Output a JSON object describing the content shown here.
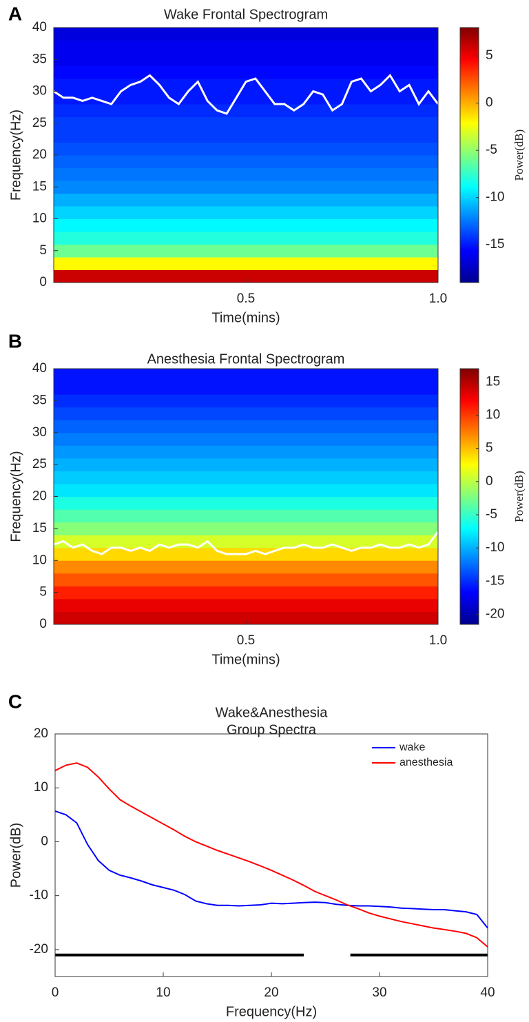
{
  "chart_data": [
    {
      "type": "spectrogram",
      "panel": "A",
      "title": "Wake Frontal Spectrogram",
      "xlabel": "Time(mins)",
      "ylabel": "Frequency(Hz)",
      "colorbar_label": "Power(dB)",
      "xlim": [
        0,
        1
      ],
      "xticks": [
        0.5,
        {
          "value": 1,
          "label": "1.0"
        }
      ],
      "ylim": [
        0,
        40
      ],
      "yticks": [
        0,
        5,
        10,
        15,
        20,
        25,
        30,
        35,
        40
      ],
      "clim": [
        -19,
        8
      ],
      "cticks": [
        -15,
        -10,
        -5,
        0,
        5
      ],
      "freq_bins": [
        0,
        2,
        4,
        6,
        8,
        10,
        12,
        14,
        16,
        18,
        20,
        22,
        24,
        26,
        28,
        30,
        32,
        34,
        36,
        38,
        40
      ],
      "power": [
        6,
        -2,
        -6,
        -8,
        -9,
        -10,
        -11,
        -12,
        -12.5,
        -13,
        -13.5,
        -14,
        -14,
        -14.5,
        -15,
        -15,
        -15.5,
        -16,
        -16,
        -16.5
      ],
      "edge_line": {
        "color": "#ffffff",
        "x": [
          0,
          0.025,
          0.05,
          0.075,
          0.1,
          0.125,
          0.15,
          0.175,
          0.2,
          0.225,
          0.25,
          0.275,
          0.3,
          0.325,
          0.35,
          0.375,
          0.4,
          0.425,
          0.45,
          0.475,
          0.5,
          0.525,
          0.55,
          0.575,
          0.6,
          0.625,
          0.65,
          0.675,
          0.7,
          0.725,
          0.75,
          0.775,
          0.8,
          0.825,
          0.85,
          0.875,
          0.9,
          0.925,
          0.95,
          0.975,
          1
        ],
        "values": [
          30,
          29,
          29,
          28.5,
          29,
          28.5,
          28,
          30,
          31,
          31.5,
          32.5,
          31,
          29,
          28,
          30,
          31.5,
          28.5,
          27,
          26.5,
          29,
          31.5,
          32,
          30,
          28,
          28,
          27,
          28,
          30,
          29.5,
          27,
          28,
          31.5,
          32,
          30,
          31,
          32.5,
          30,
          31,
          28,
          30,
          28
        ]
      }
    },
    {
      "type": "spectrogram",
      "panel": "B",
      "title": "Anesthesia Frontal Spectrogram",
      "xlabel": "Time(mins)",
      "ylabel": "Frequency(Hz)",
      "colorbar_label": "Power(dB)",
      "xlim": [
        0,
        1
      ],
      "xticks": [
        0.5,
        {
          "value": 1,
          "label": "1.0"
        }
      ],
      "ylim": [
        0,
        40
      ],
      "yticks": [
        0,
        5,
        10,
        15,
        20,
        25,
        30,
        35,
        40
      ],
      "clim": [
        -21.5,
        17
      ],
      "cticks": [
        -20,
        -15,
        -10,
        -5,
        0,
        5,
        10,
        15
      ],
      "freq_bins": [
        0,
        2,
        4,
        6,
        8,
        10,
        12,
        14,
        16,
        18,
        20,
        22,
        24,
        26,
        28,
        30,
        32,
        34,
        36,
        38,
        40
      ],
      "power": [
        14,
        13,
        11,
        9,
        7,
        4,
        1,
        -2,
        -4,
        -6,
        -8,
        -9,
        -10,
        -11,
        -12,
        -13,
        -14,
        -15,
        -16,
        -16
      ],
      "edge_line": {
        "color": "#ffffff",
        "x": [
          0,
          0.025,
          0.05,
          0.075,
          0.1,
          0.125,
          0.15,
          0.175,
          0.2,
          0.225,
          0.25,
          0.275,
          0.3,
          0.325,
          0.35,
          0.375,
          0.4,
          0.425,
          0.45,
          0.475,
          0.5,
          0.525,
          0.55,
          0.575,
          0.6,
          0.625,
          0.65,
          0.675,
          0.7,
          0.725,
          0.75,
          0.775,
          0.8,
          0.825,
          0.85,
          0.875,
          0.9,
          0.925,
          0.95,
          0.975,
          1
        ],
        "values": [
          12.5,
          13,
          12,
          12.5,
          11.5,
          11,
          12,
          12,
          11.5,
          12,
          11.5,
          12.5,
          12,
          12.5,
          12.5,
          12,
          13,
          11.5,
          11,
          11,
          11,
          11.5,
          11,
          11.5,
          12,
          12,
          12.5,
          12,
          12,
          12.5,
          12,
          11.5,
          12,
          12,
          12.5,
          12,
          12,
          12.5,
          12,
          12.5,
          14.5
        ]
      }
    },
    {
      "type": "line",
      "panel": "C",
      "title": [
        "Wake&Anesthesia",
        "Group Spectra"
      ],
      "xlabel": "Frequency(Hz)",
      "ylabel": "Power(dB)",
      "xlim": [
        0,
        40
      ],
      "xticks": [
        0,
        10,
        20,
        30,
        40
      ],
      "ylim": [
        -25,
        20
      ],
      "yticks": [
        -20,
        -10,
        0,
        10,
        20
      ],
      "legend": "upper right",
      "x": [
        0,
        1,
        2,
        3,
        4,
        5,
        6,
        7,
        8,
        9,
        10,
        11,
        12,
        13,
        14,
        15,
        16,
        17,
        18,
        19,
        20,
        21,
        22,
        23,
        24,
        25,
        26,
        27,
        28,
        29,
        30,
        31,
        32,
        33,
        34,
        35,
        36,
        37,
        38,
        39,
        40
      ],
      "series": [
        {
          "name": "wake",
          "color": "#0000ff",
          "values": [
            5.7,
            5,
            3.5,
            -0.5,
            -3.5,
            -5.3,
            -6.2,
            -6.7,
            -7.3,
            -8,
            -8.5,
            -9,
            -9.8,
            -11,
            -11.5,
            -11.8,
            -11.8,
            -11.9,
            -11.8,
            -11.7,
            -11.4,
            -11.5,
            -11.4,
            -11.3,
            -11.2,
            -11.3,
            -11.6,
            -11.8,
            -11.9,
            -11.9,
            -12,
            -12.1,
            -12.3,
            -12.4,
            -12.5,
            -12.6,
            -12.6,
            -12.8,
            -13,
            -13.5,
            -16
          ]
        },
        {
          "name": "anesthesia",
          "color": "#ff0000",
          "values": [
            13.2,
            14.2,
            14.6,
            13.8,
            12,
            9.8,
            7.8,
            6.6,
            5.5,
            4.4,
            3.3,
            2.2,
            1,
            0,
            -0.8,
            -1.6,
            -2.3,
            -3,
            -3.7,
            -4.5,
            -5.3,
            -6.2,
            -7.1,
            -8.1,
            -9.2,
            -10,
            -10.8,
            -11.7,
            -12.4,
            -13.2,
            -13.8,
            -14.3,
            -14.8,
            -15.2,
            -15.6,
            -16,
            -16.3,
            -16.6,
            -17,
            -17.8,
            -19.5
          ]
        }
      ],
      "significance": {
        "y": -21,
        "color": "#000000",
        "ranges": [
          [
            0,
            23
          ],
          [
            27.3,
            40
          ]
        ]
      }
    }
  ]
}
